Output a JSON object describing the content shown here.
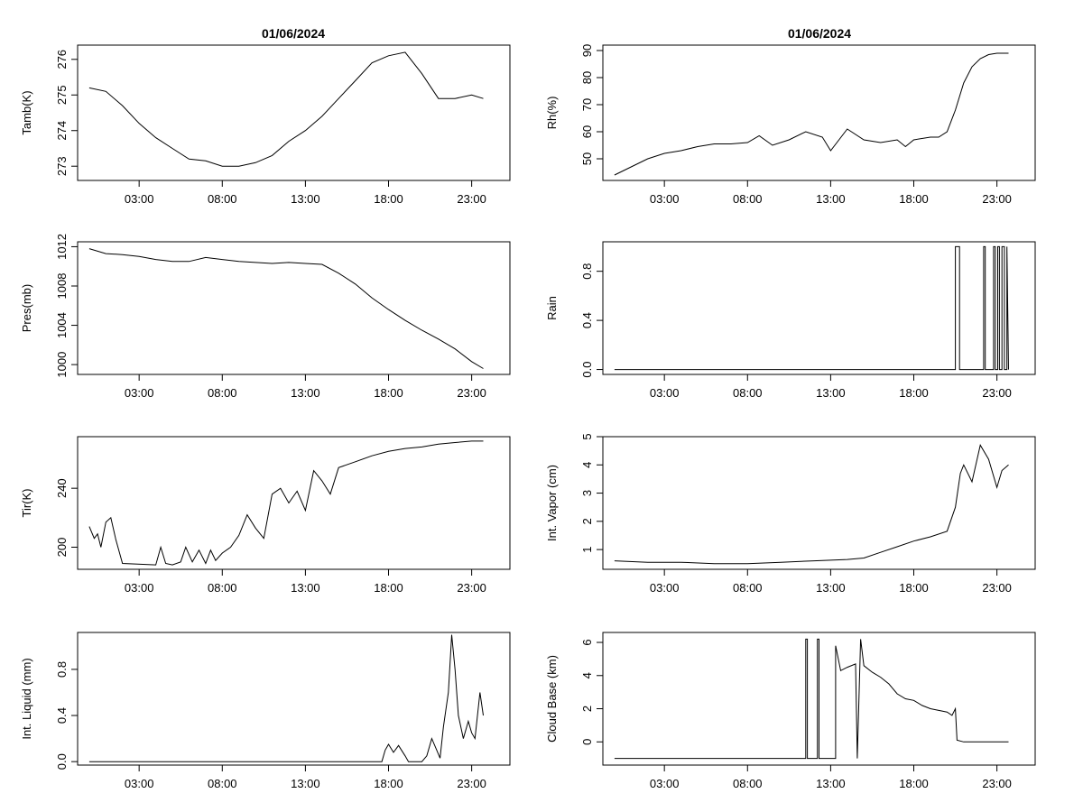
{
  "figure": {
    "titles": [
      "01/06/2024",
      "01/06/2024"
    ]
  },
  "chart_data": [
    {
      "type": "line",
      "title": "01/06/2024",
      "xlabel": "",
      "ylabel": "Tamb(K)",
      "x_ticks": [
        "03:00",
        "08:00",
        "13:00",
        "18:00",
        "23:00"
      ],
      "x_tick_hours": [
        3,
        8,
        13,
        18,
        23
      ],
      "xlim": [
        -0.7,
        25.3
      ],
      "ylim": [
        272.6,
        276.4
      ],
      "y_ticks": [
        273,
        274,
        275,
        276
      ],
      "y_tick_labels": [
        "273",
        "274",
        "275",
        "276"
      ],
      "grid": false,
      "series": [
        {
          "x": [
            0,
            1,
            2,
            3,
            4,
            5,
            6,
            7,
            8,
            9,
            10,
            11,
            12,
            13,
            14,
            15,
            16,
            17,
            18,
            19,
            20,
            21,
            22,
            23,
            23.7
          ],
          "y": [
            275.2,
            275.1,
            274.7,
            274.2,
            273.8,
            273.5,
            273.2,
            273.15,
            273.0,
            273.0,
            273.1,
            273.3,
            273.7,
            274.0,
            274.4,
            274.9,
            275.4,
            275.9,
            276.1,
            276.2,
            275.6,
            274.9,
            274.9,
            275.0,
            274.9
          ]
        }
      ]
    },
    {
      "type": "line",
      "title": "01/06/2024",
      "xlabel": "",
      "ylabel": "Rh(%)",
      "x_ticks": [
        "03:00",
        "08:00",
        "13:00",
        "18:00",
        "23:00"
      ],
      "x_tick_hours": [
        3,
        8,
        13,
        18,
        23
      ],
      "xlim": [
        -0.7,
        25.3
      ],
      "ylim": [
        42,
        92
      ],
      "y_ticks": [
        50,
        60,
        70,
        80,
        90
      ],
      "y_tick_labels": [
        "50",
        "60",
        "70",
        "80",
        "90"
      ],
      "grid": false,
      "series": [
        {
          "x": [
            0,
            1,
            2,
            3,
            4,
            5,
            6,
            7,
            8,
            8.7,
            9.5,
            10.5,
            11.5,
            12.5,
            13,
            14,
            15,
            16,
            17,
            17.5,
            18,
            19,
            19.5,
            20,
            20.5,
            21,
            21.5,
            22,
            22.5,
            23,
            23.7
          ],
          "y": [
            44,
            47,
            50,
            52,
            53,
            54.5,
            55.5,
            55.5,
            56,
            58.5,
            55,
            57,
            60,
            58,
            53,
            61,
            57,
            56,
            57,
            54.5,
            57,
            58,
            58,
            60,
            68,
            78,
            84,
            87,
            88.5,
            89,
            89
          ]
        }
      ]
    },
    {
      "type": "line",
      "title": "",
      "xlabel": "",
      "ylabel": "Pres(mb)",
      "x_ticks": [
        "03:00",
        "08:00",
        "13:00",
        "18:00",
        "23:00"
      ],
      "x_tick_hours": [
        3,
        8,
        13,
        18,
        23
      ],
      "xlim": [
        -0.7,
        25.3
      ],
      "ylim": [
        999,
        1012.5
      ],
      "y_ticks": [
        1000,
        1004,
        1008,
        1012
      ],
      "y_tick_labels": [
        "1000",
        "1004",
        "1008",
        "1012"
      ],
      "grid": false,
      "series": [
        {
          "x": [
            0,
            1,
            2,
            3,
            4,
            5,
            6,
            7,
            8,
            9,
            10,
            11,
            12,
            13,
            14,
            15,
            16,
            17,
            18,
            19,
            20,
            21,
            22,
            23,
            23.7
          ],
          "y": [
            1011.8,
            1011.3,
            1011.2,
            1011.0,
            1010.7,
            1010.5,
            1010.5,
            1010.9,
            1010.7,
            1010.5,
            1010.4,
            1010.3,
            1010.4,
            1010.3,
            1010.2,
            1009.3,
            1008.2,
            1006.8,
            1005.6,
            1004.5,
            1003.5,
            1002.6,
            1001.6,
            1000.3,
            999.6
          ]
        }
      ]
    },
    {
      "type": "line",
      "title": "",
      "xlabel": "",
      "ylabel": "Rain",
      "x_ticks": [
        "03:00",
        "08:00",
        "13:00",
        "18:00",
        "23:00"
      ],
      "x_tick_hours": [
        3,
        8,
        13,
        18,
        23
      ],
      "xlim": [
        -0.7,
        25.3
      ],
      "ylim": [
        -0.04,
        1.04
      ],
      "y_ticks": [
        0.0,
        0.4,
        0.8
      ],
      "y_tick_labels": [
        "0.0",
        "0.4",
        "0.8"
      ],
      "grid": false,
      "series": [
        {
          "x": [
            0,
            20.5,
            20.5,
            20.75,
            20.75,
            22.2,
            22.2,
            22.3,
            22.3,
            22.8,
            22.8,
            22.9,
            22.9,
            23.05,
            23.05,
            23.15,
            23.15,
            23.3,
            23.3,
            23.45,
            23.45,
            23.6,
            23.6,
            23.7
          ],
          "y": [
            0,
            0,
            1,
            1,
            0,
            0,
            1,
            1,
            0,
            0,
            1,
            1,
            0,
            0,
            1,
            1,
            0,
            0,
            1,
            1,
            0,
            0,
            1,
            0
          ]
        }
      ]
    },
    {
      "type": "line",
      "title": "",
      "xlabel": "",
      "ylabel": "Tir(K)",
      "x_ticks": [
        "03:00",
        "08:00",
        "13:00",
        "18:00",
        "23:00"
      ],
      "x_tick_hours": [
        3,
        8,
        13,
        18,
        23
      ],
      "xlim": [
        -0.7,
        25.3
      ],
      "ylim": [
        185,
        275
      ],
      "y_ticks": [
        200,
        240
      ],
      "y_tick_labels": [
        "200",
        "240"
      ],
      "grid": false,
      "series": [
        {
          "x": [
            0,
            0.3,
            0.5,
            0.7,
            1,
            1.3,
            1.6,
            2,
            4,
            4.3,
            4.6,
            5,
            5.5,
            5.8,
            6.2,
            6.6,
            7,
            7.3,
            7.6,
            8,
            8.5,
            9,
            9.5,
            10,
            10.5,
            11,
            11.5,
            12,
            12.5,
            13,
            13.5,
            14,
            14.5,
            15,
            16,
            17,
            18,
            19,
            20,
            21,
            22,
            23,
            23.7
          ],
          "y": [
            214,
            206,
            209,
            200,
            217,
            220,
            205,
            189,
            188,
            200,
            189,
            188,
            190,
            200,
            190,
            198,
            189,
            198,
            191,
            196,
            200,
            208,
            222,
            213,
            206,
            236,
            240,
            230,
            238,
            225,
            252,
            245,
            236,
            254,
            258,
            262,
            265,
            267,
            268,
            270,
            271,
            272,
            272
          ]
        }
      ]
    },
    {
      "type": "line",
      "title": "",
      "xlabel": "",
      "ylabel": "Int. Vapor (cm)",
      "x_ticks": [
        "03:00",
        "08:00",
        "13:00",
        "18:00",
        "23:00"
      ],
      "x_tick_hours": [
        3,
        8,
        13,
        18,
        23
      ],
      "xlim": [
        -0.7,
        25.3
      ],
      "ylim": [
        0.3,
        5.0
      ],
      "y_ticks": [
        1,
        2,
        3,
        4,
        5
      ],
      "y_tick_labels": [
        "1",
        "2",
        "3",
        "4",
        "5"
      ],
      "grid": false,
      "series": [
        {
          "x": [
            0,
            2,
            4,
            6,
            8,
            10,
            12,
            14,
            15,
            16,
            17,
            18,
            19,
            20,
            20.5,
            20.8,
            21,
            21.5,
            22,
            22.5,
            23,
            23.3,
            23.7
          ],
          "y": [
            0.6,
            0.55,
            0.55,
            0.5,
            0.5,
            0.55,
            0.6,
            0.65,
            0.7,
            0.9,
            1.1,
            1.3,
            1.45,
            1.65,
            2.5,
            3.7,
            4.0,
            3.4,
            4.7,
            4.2,
            3.2,
            3.8,
            4.0
          ]
        }
      ]
    },
    {
      "type": "line",
      "title": "",
      "xlabel": "",
      "ylabel": "Int. Liquid (mm)",
      "x_ticks": [
        "03:00",
        "08:00",
        "13:00",
        "18:00",
        "23:00"
      ],
      "x_tick_hours": [
        3,
        8,
        13,
        18,
        23
      ],
      "xlim": [
        -0.7,
        25.3
      ],
      "ylim": [
        -0.03,
        1.12
      ],
      "y_ticks": [
        0.0,
        0.4,
        0.8
      ],
      "y_tick_labels": [
        "0.0",
        "0.4",
        "0.8"
      ],
      "grid": false,
      "series": [
        {
          "x": [
            0,
            17.6,
            17.8,
            18,
            18.3,
            18.6,
            19,
            19.2,
            20,
            20.3,
            20.6,
            20.9,
            21.1,
            21.3,
            21.6,
            21.8,
            22,
            22.2,
            22.5,
            22.8,
            23,
            23.2,
            23.5,
            23.7
          ],
          "y": [
            0,
            0,
            0.1,
            0.15,
            0.08,
            0.14,
            0.05,
            0,
            0,
            0.05,
            0.2,
            0.1,
            0.03,
            0.3,
            0.6,
            1.1,
            0.8,
            0.4,
            0.2,
            0.35,
            0.25,
            0.2,
            0.6,
            0.4
          ]
        }
      ]
    },
    {
      "type": "line",
      "title": "",
      "xlabel": "",
      "ylabel": "Cloud Base (km)",
      "x_ticks": [
        "03:00",
        "08:00",
        "13:00",
        "18:00",
        "23:00"
      ],
      "x_tick_hours": [
        3,
        8,
        13,
        18,
        23
      ],
      "xlim": [
        -0.7,
        25.3
      ],
      "ylim": [
        -1.4,
        6.6
      ],
      "y_ticks": [
        0,
        2,
        4,
        6
      ],
      "y_tick_labels": [
        "0",
        "2",
        "4",
        "6"
      ],
      "grid": false,
      "series": [
        {
          "x": [
            0,
            11.5,
            11.5,
            11.6,
            11.6,
            12.2,
            12.2,
            12.3,
            12.3,
            13.3,
            13.3,
            13.6,
            14,
            14.5,
            14.6,
            14.6,
            14.8,
            14.8,
            15,
            15.5,
            16,
            16.5,
            17,
            17.5,
            18,
            18.5,
            19,
            20,
            20.3,
            20.5,
            20.6,
            21,
            22,
            23,
            23.7
          ],
          "y": [
            -1,
            -1,
            6.2,
            6.2,
            -1,
            -1,
            6.2,
            6.2,
            -1,
            -1,
            5.8,
            4.3,
            4.5,
            4.7,
            -1,
            -1,
            6.2,
            6.2,
            4.6,
            4.2,
            3.9,
            3.5,
            2.9,
            2.6,
            2.5,
            2.2,
            2.0,
            1.8,
            1.6,
            2.0,
            0.1,
            0,
            0,
            0,
            0
          ]
        }
      ]
    }
  ]
}
